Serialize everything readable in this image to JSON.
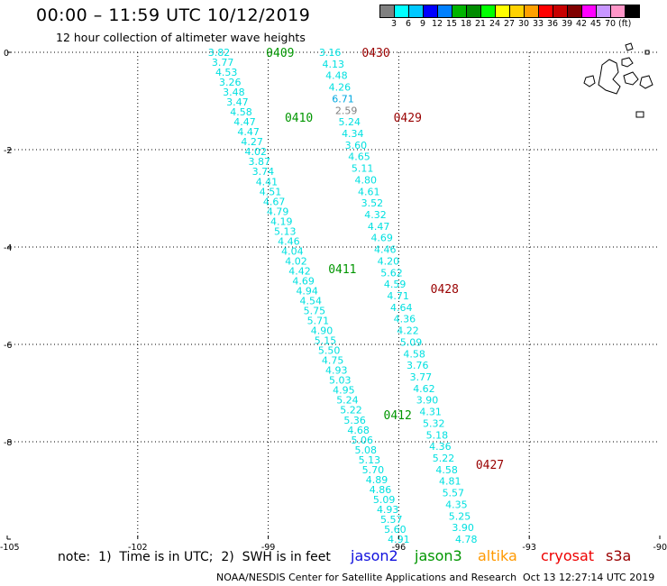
{
  "header": {
    "title": "00:00 – 11:59 UTC 10/12/2019",
    "subtitle": "12 hour collection of altimeter wave heights"
  },
  "legend": {
    "colors": [
      "#808080",
      "#00ffff",
      "#00c8ff",
      "#0000ff",
      "#0080ff",
      "#00b400",
      "#008c00",
      "#00ff00",
      "#ffff00",
      "#ffd200",
      "#ffa000",
      "#ff0000",
      "#c80000",
      "#800000",
      "#ff00ff",
      "#c896ff",
      "#ff96c8",
      "#000000"
    ],
    "labels": [
      "3",
      "6",
      "9",
      "12",
      "15",
      "18",
      "21",
      "24",
      "27",
      "30",
      "33",
      "36",
      "39",
      "42",
      "45",
      "70"
    ],
    "unit": "(ft)"
  },
  "note": "note:  1)  Time is in UTC;  2)  SWH is in feet",
  "satellites": [
    {
      "name": "jason2",
      "color": "#1010dd"
    },
    {
      "name": "jason3",
      "color": "#009600"
    },
    {
      "name": "altika",
      "color": "#ff9900"
    },
    {
      "name": "cryosat",
      "color": "#ee0000"
    },
    {
      "name": "s3a",
      "color": "#990000"
    }
  ],
  "footer": {
    "credit": "NOAA/NESDIS Center for Satellite Applications and Research",
    "timestamp": "Oct 13 12:27:14 UTC 2019"
  },
  "chart_data": {
    "type": "scatter",
    "xlim": [
      -105,
      -90
    ],
    "ylim": [
      -10,
      0
    ],
    "x_ticks": [
      "-105",
      "-102",
      "-99",
      "-96",
      "-93",
      "-90"
    ],
    "y_ticks": [
      "0",
      "-2",
      "-4",
      "-6",
      "-8",
      "-10"
    ],
    "grid": true,
    "tracks": [
      {
        "satellite": "jason3",
        "x_start": -100.13,
        "x_end": -96.0,
        "values": [
          "3.82",
          "3.77",
          "4.53",
          "3.26",
          "3.48",
          "3.47",
          "4.58",
          "4.47",
          "4.47",
          "4.27",
          "4.02",
          "3.87",
          "3.74",
          "4.41",
          "4.51",
          "4.67",
          "4.79",
          "4.19",
          "5.13",
          "4.46",
          "4.04",
          "4.02",
          "4.42",
          "4.69",
          "4.94",
          "4.54",
          "5.75",
          "5.71",
          "4.90",
          "5.15",
          "5.50",
          "4.75",
          "4.93",
          "5.03",
          "4.95",
          "5.24",
          "5.22",
          "5.36",
          "4.68",
          "5.06",
          "5.08",
          "5.13",
          "5.70",
          "4.89",
          "4.86",
          "5.09",
          "4.93",
          "5.57",
          "5.60",
          "4.91"
        ]
      },
      {
        "satellite": "s3a",
        "x_start": -97.58,
        "x_end": -94.45,
        "values": [
          "3.16",
          "4.13",
          "4.48",
          "4.26",
          "6.71",
          "2.59",
          "5.24",
          "4.34",
          "3.60",
          "4.65",
          "5.11",
          "4.80",
          "4.61",
          "3.52",
          "4.32",
          "4.47",
          "4.69",
          "4.46",
          "4.20",
          "5.62",
          "4.59",
          "4.71",
          "4.64",
          "4.36",
          "4.22",
          "5.09",
          "4.58",
          "3.76",
          "3.77",
          "4.62",
          "3.90",
          "4.31",
          "5.32",
          "5.18",
          "4.36",
          "5.22",
          "4.58",
          "4.81",
          "5.57",
          "4.35",
          "5.25",
          "3.90",
          "4.78"
        ]
      }
    ],
    "hour_labels": [
      {
        "text": "0409",
        "satellite": "jason3",
        "lon": -99.05,
        "lat": 0.0
      },
      {
        "text": "0410",
        "satellite": "jason3",
        "lon": -98.62,
        "lat": -1.33
      },
      {
        "text": "0411",
        "satellite": "jason3",
        "lon": -97.62,
        "lat": -4.44
      },
      {
        "text": "0412",
        "satellite": "jason3",
        "lon": -96.35,
        "lat": -7.44
      },
      {
        "text": "0430",
        "satellite": "s3a",
        "lon": -96.85,
        "lat": 0.0
      },
      {
        "text": "0429",
        "satellite": "s3a",
        "lon": -96.12,
        "lat": -1.33
      },
      {
        "text": "0428",
        "satellite": "s3a",
        "lon": -95.27,
        "lat": -4.85
      },
      {
        "text": "0427",
        "satellite": "s3a",
        "lon": -94.23,
        "lat": -8.46
      }
    ]
  }
}
